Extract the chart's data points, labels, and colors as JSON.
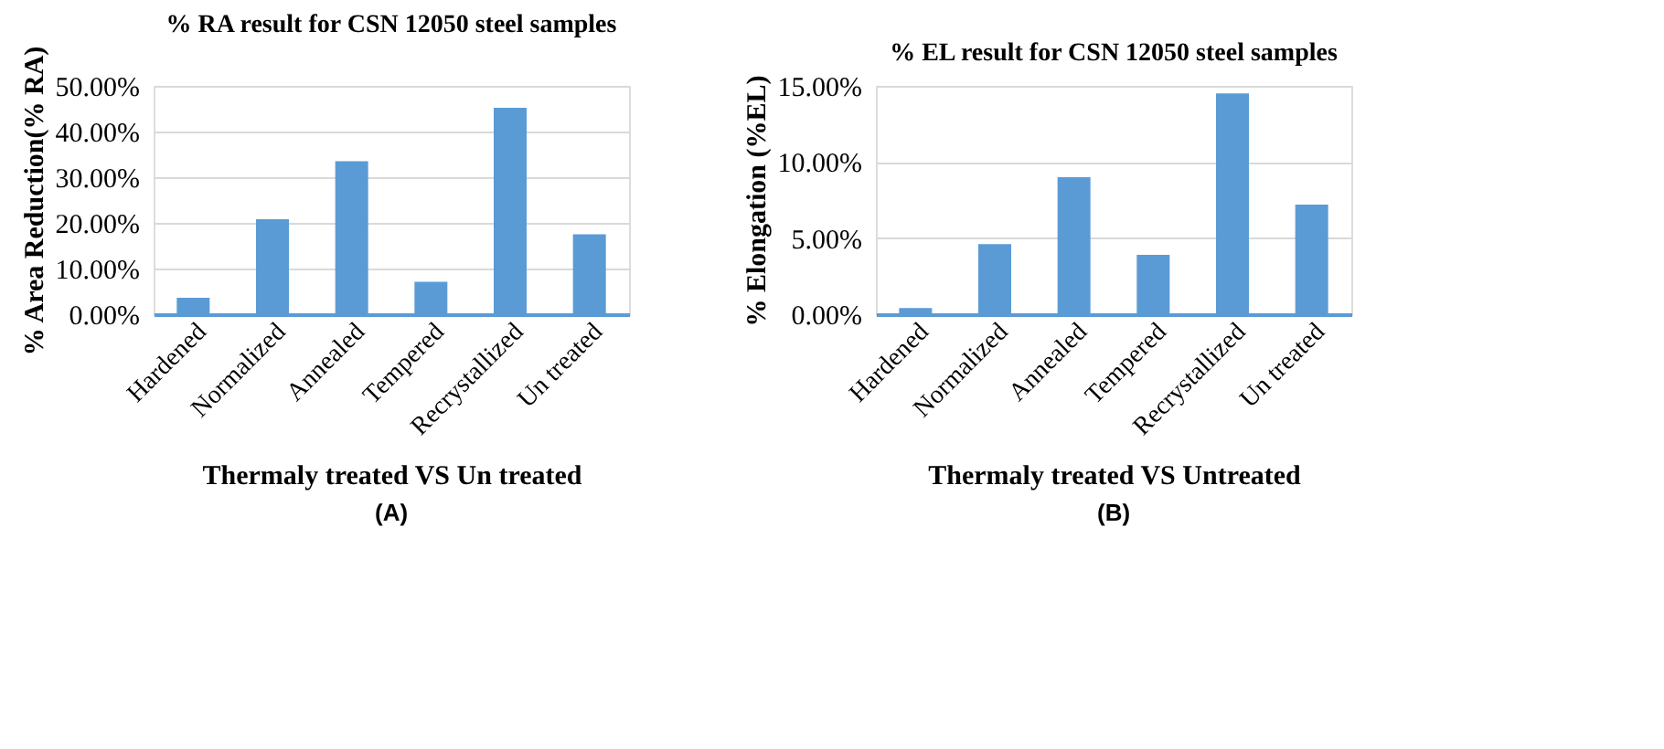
{
  "chart_data": [
    {
      "type": "bar",
      "title": "% RA result for CSN 12050 steel samples",
      "xlabel": "Thermaly treated VS Un treated",
      "ylabel": "% Area Reduction(% RA)",
      "categories": [
        "Hardened",
        "Normalized",
        "Annealed",
        "Tempered",
        "Recrystallized",
        "Un treated"
      ],
      "values": [
        3.6,
        20.8,
        33.5,
        7.1,
        45.2,
        17.5
      ],
      "color": "#5b9bd5",
      "ylim": [
        0,
        50
      ],
      "yticks": [
        {
          "value": 0,
          "label": "0.00%"
        },
        {
          "value": 10,
          "label": "10.00%"
        },
        {
          "value": 20,
          "label": "20.00%"
        },
        {
          "value": 30,
          "label": "30.00%"
        },
        {
          "value": 40,
          "label": "40.00%"
        },
        {
          "value": 50,
          "label": "50.00%"
        }
      ],
      "grid": "y",
      "annotations": [
        "(A)"
      ]
    },
    {
      "type": "bar",
      "title": "% EL result for CSN 12050  steel samples",
      "xlabel": "Thermaly treated VS Untreated",
      "ylabel": "% Elongation (%EL)",
      "categories": [
        "Hardened",
        "Normalized",
        "Annealed",
        "Tempered",
        "Recrystallized",
        "Un treated"
      ],
      "values": [
        0.4,
        4.6,
        9.0,
        3.9,
        14.5,
        7.2
      ],
      "color": "#5b9bd5",
      "ylim": [
        0,
        15
      ],
      "yticks": [
        {
          "value": 0,
          "label": "0.00%"
        },
        {
          "value": 5,
          "label": "5.00%"
        },
        {
          "value": 10,
          "label": "10.00%"
        },
        {
          "value": 15,
          "label": "15.00%"
        }
      ],
      "grid": "y",
      "annotations": [
        "(B)"
      ]
    }
  ]
}
